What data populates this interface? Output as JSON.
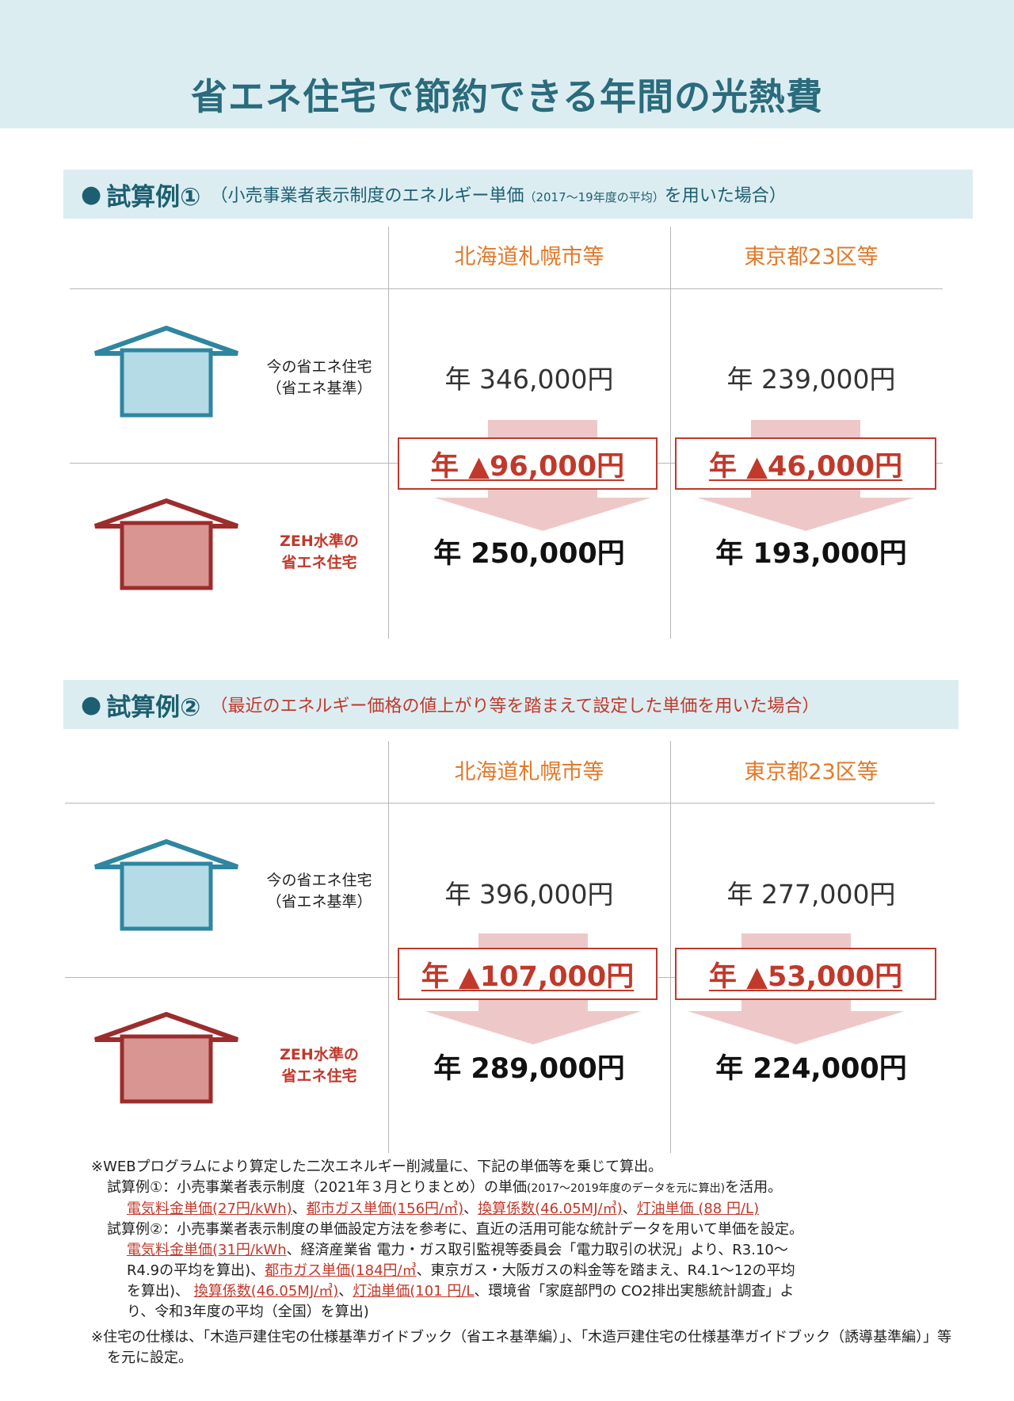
{
  "title": "省エネ住宅で節約できる年間の光熱費",
  "house_labels": {
    "current_line1": "今の省エネ住宅",
    "current_line2": "（省エネ基準）",
    "zeh_line1": "ZEH水準の",
    "zeh_line2": "省エネ住宅"
  },
  "examples": [
    {
      "name": "試算例①",
      "subtitle_pre": "（小売事業者表示制度のエネルギー単価",
      "subtitle_small": "（2017～19年度の平均）",
      "subtitle_post": "を用いた場合）",
      "cities": [
        "北海道札幌市等",
        "東京都23区等"
      ],
      "current": [
        "年 346,000円",
        "年 239,000円"
      ],
      "savings": [
        "年 ▲96,000円",
        "年 ▲46,000円"
      ],
      "zeh": [
        "年 250,000円",
        "年 193,000円"
      ]
    },
    {
      "name": "試算例②",
      "subtitle": "（最近のエネルギー価格の値上がり等を踏まえて設定した単価を用いた場合）",
      "cities": [
        "北海道札幌市等",
        "東京都23区等"
      ],
      "current": [
        "年 396,000円",
        "年 277,000円"
      ],
      "savings": [
        "年 ▲107,000円",
        "年 ▲53,000円"
      ],
      "zeh": [
        "年 289,000円",
        "年 224,000円"
      ]
    }
  ],
  "notes": {
    "n1": "※WEBプログラムにより算定した二次エネルギー削減量に、下記の単価等を乗じて算出。",
    "ex1_a": "試算例①：小売事業者表示制度（2021年３月とりまとめ）の単価",
    "ex1_small": "(2017～2019年度のデータを元に算出)",
    "ex1_b": "を活用。",
    "ex1_u1": "電気料金単価(27円/kWh)",
    "ex1_u2": "都市ガス単価(156円/㎥)",
    "ex1_u3": "換算係数(46.05MJ/㎥)",
    "ex1_u4": "灯油単価 (88 円/L)",
    "sep": "、",
    "ex2_a": "試算例②：小売事業者表示制度の単価設定方法を参考に、直近の活用可能な統計データを用いて単価を設定。",
    "ex2_u1": "電気料金単価(31円/kWh",
    "ex2_t1": "、経済産業省 電力・ガス取引監視等委員会「電力取引の状況」より、R3.10～",
    "ex2_t2": "R4.9の平均を算出)、",
    "ex2_u2": "都市ガス単価(184円/㎥",
    "ex2_t3": "、東京ガス・大阪ガスの料金等を踏まえ、R4.1～12の平均",
    "ex2_t4": "を算出)、 ",
    "ex2_u3": "換算係数(46.05MJ/㎥)",
    "ex2_u4": "灯油単価(101 円/L",
    "ex2_t5": "、環境省「家庭部門の CO2排出実態統計調査」よ",
    "ex2_t6": "り、令和3年度の平均（全国）を算出)",
    "n2": "※住宅の仕様は、「木造戸建住宅の仕様基準ガイドブック（省エネ基準編）」、「木造戸建住宅の仕様基準ガイドブック（誘導基準編）」等を元に設定。"
  }
}
